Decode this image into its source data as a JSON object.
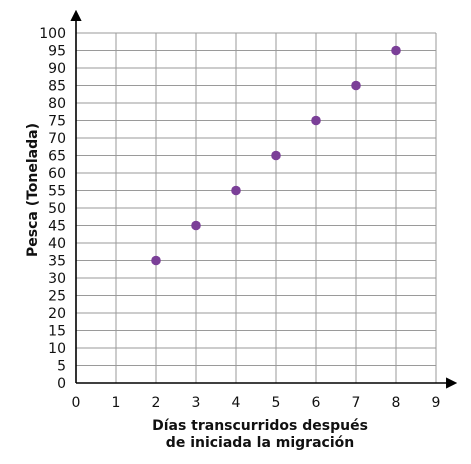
{
  "chart_data": {
    "type": "scatter",
    "title": "",
    "xlabel_lines": [
      "Días transcurridos después",
      "de iniciada la migración"
    ],
    "ylabel": "Pesca (Tonelada)",
    "x": [
      2,
      3,
      4,
      5,
      6,
      7,
      8
    ],
    "y": [
      35,
      45,
      55,
      65,
      75,
      85,
      95
    ],
    "xlim": [
      0,
      9
    ],
    "ylim": [
      0,
      100
    ],
    "xticks": [
      0,
      1,
      2,
      3,
      4,
      5,
      6,
      7,
      8,
      9
    ],
    "yticks": [
      0,
      5,
      10,
      15,
      20,
      25,
      30,
      35,
      40,
      45,
      50,
      55,
      60,
      65,
      70,
      75,
      80,
      85,
      90,
      95,
      100
    ],
    "grid": true,
    "marker_color": "#7b3f98"
  }
}
